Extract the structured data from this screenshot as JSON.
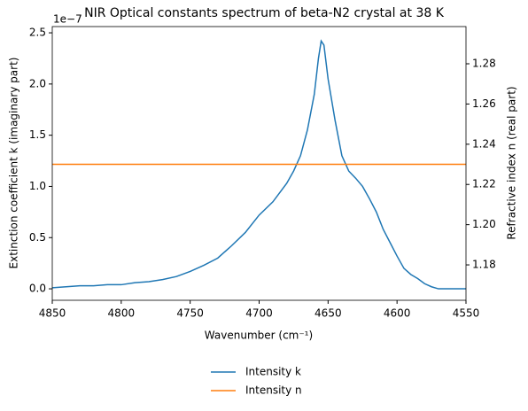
{
  "chart_data": {
    "type": "line",
    "title": "NIR Optical constants spectrum of beta-N2 crystal at 38 K",
    "xlabel": "Wavenumber (cm⁻¹)",
    "ylabel": "Extinction coefficient k (imaginary part)",
    "y2label": "Refractive index n (real part)",
    "y_offset_text": "1e−7",
    "xlim": [
      4850,
      4550
    ],
    "xticks": [
      4850,
      4800,
      4750,
      4700,
      4650,
      4600,
      4550
    ],
    "ylim": [
      -0.112,
      2.561
    ],
    "yticks": [
      {
        "value": 0,
        "label": "0.0"
      },
      0.5,
      {
        "value": 1,
        "label": "1.0"
      },
      1.5,
      {
        "value": 2,
        "label": "2.0"
      },
      2.5
    ],
    "y2lim": [
      1.1624,
      1.2985
    ],
    "y2ticks": [
      1.18,
      {
        "value": 1.2,
        "label": "1.20"
      },
      1.22,
      1.24,
      1.26,
      1.28
    ],
    "legend": "lower center outside",
    "series": [
      {
        "name": "Intensity k",
        "color": "#1f77b4",
        "x": [
          4850,
          4840,
          4830,
          4820,
          4810,
          4800,
          4790,
          4780,
          4770,
          4760,
          4750,
          4740,
          4730,
          4720,
          4710,
          4700,
          4690,
          4680,
          4675,
          4670,
          4665,
          4660,
          4657,
          4655,
          4653,
          4650,
          4645,
          4640,
          4635,
          4630,
          4625,
          4620,
          4615,
          4610,
          4605,
          4600,
          4595,
          4590,
          4585,
          4580,
          4575,
          4570,
          4560,
          4550
        ],
        "values": [
          0.01,
          0.02,
          0.03,
          0.03,
          0.04,
          0.04,
          0.06,
          0.07,
          0.09,
          0.12,
          0.17,
          0.23,
          0.3,
          0.42,
          0.55,
          0.72,
          0.85,
          1.03,
          1.15,
          1.3,
          1.55,
          1.9,
          2.25,
          2.42,
          2.38,
          2.05,
          1.65,
          1.3,
          1.15,
          1.08,
          1.0,
          0.88,
          0.75,
          0.58,
          0.45,
          0.32,
          0.2,
          0.14,
          0.1,
          0.05,
          0.02,
          0.0,
          0.0,
          0.0
        ]
      },
      {
        "name": "Intensity n",
        "color": "#ff7f0e",
        "axis": "y2",
        "x": [
          4850,
          4550
        ],
        "values": [
          1.23,
          1.23
        ]
      }
    ]
  }
}
